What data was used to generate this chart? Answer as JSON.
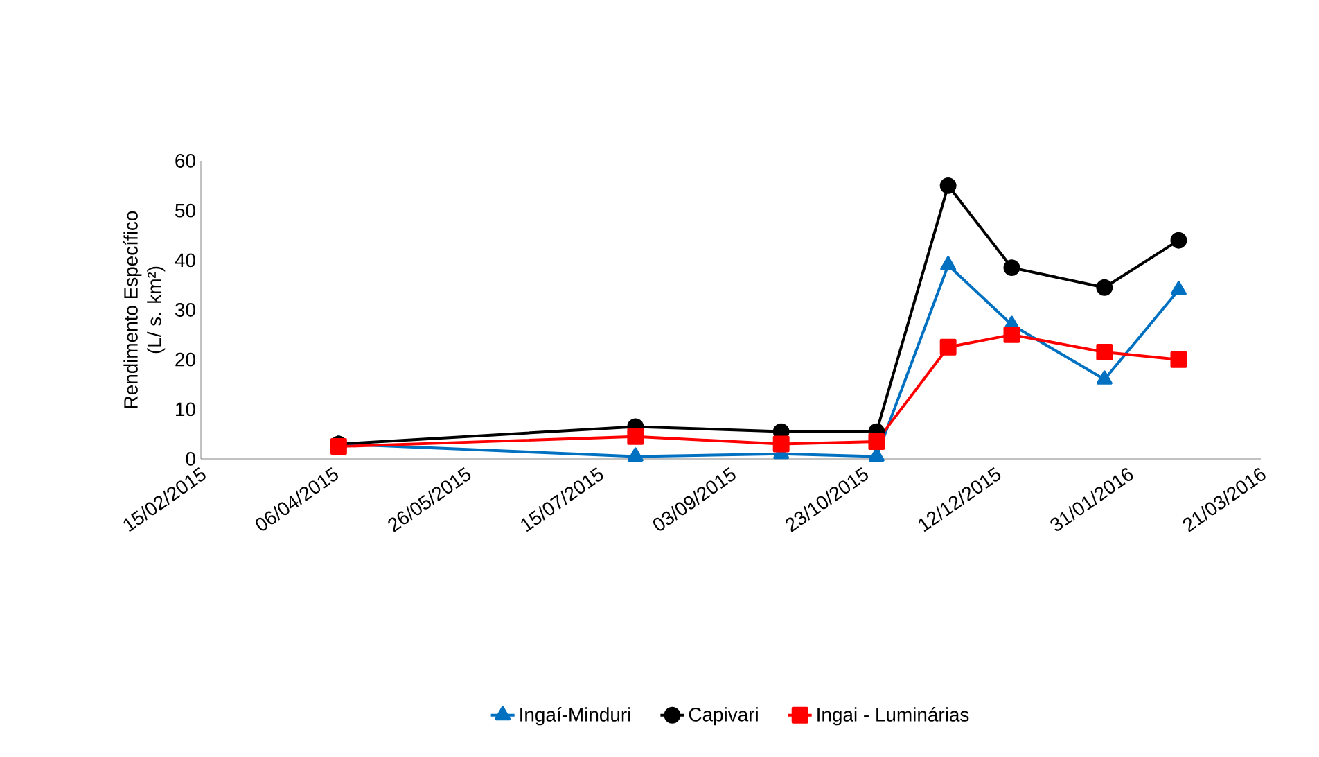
{
  "chart_data": {
    "type": "line",
    "ylabel": "Rendimento Específico\n(L/ s. km²)",
    "x": [
      "2015-04-08",
      "2015-07-29",
      "2015-09-22",
      "2015-10-28",
      "2015-11-24",
      "2015-12-18",
      "2016-01-22",
      "2016-02-19"
    ],
    "series": [
      {
        "name": "Ingaí-Minduri",
        "color": "#0070c0",
        "marker": "triangle",
        "values": [
          3,
          0.5,
          1,
          0.5,
          39,
          27,
          16,
          34
        ]
      },
      {
        "name": "Capivari",
        "color": "#000000",
        "marker": "circle",
        "values": [
          3,
          6.5,
          5.5,
          5.5,
          55,
          38.5,
          34.5,
          44
        ]
      },
      {
        "name": "Ingai - Luminárias",
        "color": "#ff0000",
        "marker": "square",
        "values": [
          2.5,
          4.5,
          3,
          3.5,
          22.5,
          25,
          21.5,
          20
        ]
      }
    ],
    "xlim": [
      "2015-02-15",
      "2016-03-21"
    ],
    "xticks": [
      {
        "value": "2015-02-15",
        "label": "15/02/2015"
      },
      {
        "value": "2015-04-06",
        "label": "06/04/2015"
      },
      {
        "value": "2015-05-26",
        "label": "26/05/2015"
      },
      {
        "value": "2015-07-15",
        "label": "15/07/2015"
      },
      {
        "value": "2015-09-03",
        "label": "03/09/2015"
      },
      {
        "value": "2015-10-23",
        "label": "23/10/2015"
      },
      {
        "value": "2015-12-12",
        "label": "12/12/2015"
      },
      {
        "value": "2016-01-31",
        "label": "31/01/2016"
      },
      {
        "value": "2016-03-21",
        "label": "21/03/2016"
      }
    ],
    "ylim": [
      0,
      60
    ],
    "yticks": [
      0,
      10,
      20,
      30,
      40,
      50,
      60
    ],
    "grid": false,
    "legend": "bottom",
    "line_style": "solid"
  }
}
